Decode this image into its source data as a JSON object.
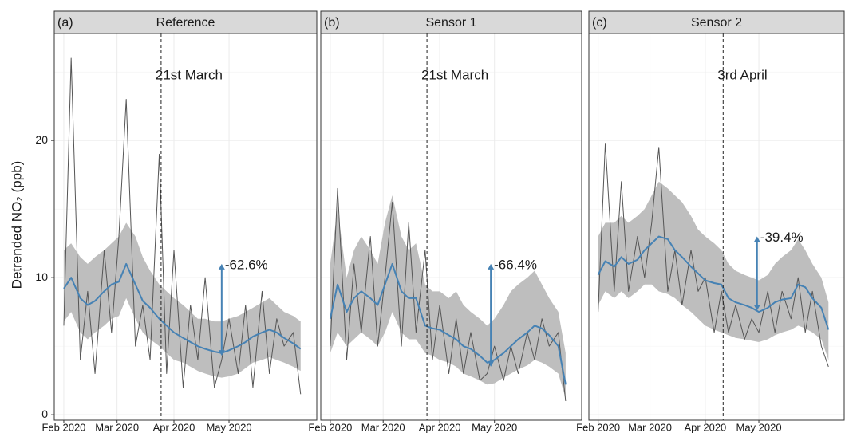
{
  "y_label": "Detrended NO₂ (ppb)",
  "chart_data": [
    {
      "type": "line",
      "tag": "(a)",
      "title": "Reference",
      "x": [
        0,
        4,
        9,
        13,
        17,
        22,
        26,
        30,
        34,
        39,
        43,
        47,
        52,
        56,
        60,
        65,
        69,
        73,
        77,
        82,
        86,
        90,
        95,
        99,
        103,
        108,
        112,
        116,
        120,
        125,
        129
      ],
      "observed": [
        6.5,
        26,
        4,
        9,
        3,
        12,
        6,
        13,
        23,
        5,
        8,
        4,
        19,
        3,
        12,
        2,
        8,
        4,
        10,
        2,
        4,
        7,
        3,
        8,
        2,
        9,
        3,
        7,
        5,
        6,
        1.5
      ],
      "smooth": [
        9.2,
        10,
        8.5,
        8,
        8.3,
        9,
        9.5,
        9.7,
        11,
        9.5,
        8.3,
        7.8,
        7,
        6.5,
        6,
        5.6,
        5.3,
        5,
        4.8,
        4.6,
        4.5,
        4.7,
        5,
        5.3,
        5.7,
        6,
        6.2,
        6,
        5.6,
        5.2,
        4.8
      ],
      "upper": [
        12,
        12.5,
        11.5,
        11,
        11.5,
        12,
        12.5,
        13,
        14,
        13,
        11.5,
        10.5,
        9.5,
        9,
        8.5,
        8,
        7.5,
        7,
        7,
        6.8,
        6.8,
        7,
        7.2,
        7.5,
        7.8,
        8.2,
        8.5,
        8,
        7.5,
        7.2,
        6.8
      ],
      "lower": [
        6.8,
        7.5,
        6,
        5.5,
        6,
        6.5,
        7,
        7.2,
        8.5,
        7,
        6,
        5.5,
        5,
        4.5,
        4,
        3.8,
        3.5,
        3.2,
        3,
        2.8,
        2.7,
        2.8,
        3,
        3.4,
        3.8,
        4,
        4.2,
        4,
        3.8,
        3.5,
        3.2
      ],
      "event": {
        "label": "21st March",
        "x": 53
      },
      "change": {
        "label": "-62.6%",
        "x": 86,
        "from": 4.3,
        "to": 11
      },
      "xlim": [
        -5.2,
        137.8
      ],
      "ylim": [
        -0.4,
        27.8
      ],
      "xticks": [
        {
          "value": 0,
          "label": "Feb 2020"
        },
        {
          "value": 29,
          "label": "Mar 2020"
        },
        {
          "value": 60,
          "label": "Apr 2020"
        },
        {
          "value": 90,
          "label": "May 2020"
        }
      ],
      "yticks": [
        0,
        10,
        20
      ],
      "yminor": [
        5,
        15,
        25
      ]
    },
    {
      "type": "line",
      "tag": "(b)",
      "title": "Sensor 1",
      "x": [
        0,
        4,
        9,
        13,
        17,
        22,
        26,
        30,
        34,
        39,
        43,
        47,
        52,
        56,
        60,
        65,
        69,
        73,
        77,
        82,
        86,
        90,
        95,
        99,
        103,
        108,
        112,
        116,
        120,
        125,
        129
      ],
      "observed": [
        5,
        16.5,
        4,
        11,
        6,
        13,
        5,
        10,
        15.5,
        5,
        14,
        6,
        12,
        4,
        8,
        3,
        7,
        3,
        6,
        2.5,
        3,
        5,
        2.5,
        5,
        3,
        6,
        4,
        7,
        5,
        6,
        1
      ],
      "smooth": [
        7,
        9.5,
        7.5,
        8.5,
        9,
        8.5,
        8,
        9.5,
        11,
        9,
        8.5,
        8.5,
        6.5,
        6.3,
        6.2,
        5.8,
        5.5,
        5,
        4.8,
        4.3,
        3.8,
        4,
        4.5,
        5,
        5.5,
        6,
        6.5,
        6.3,
        5.8,
        5,
        2.2
      ],
      "upper": [
        11,
        15,
        10,
        12,
        13,
        12,
        11,
        14,
        16,
        13,
        12,
        12.5,
        9.5,
        9,
        9,
        8.5,
        9,
        8,
        7.5,
        7,
        6.5,
        7,
        8,
        9,
        9.5,
        10,
        10.5,
        9.5,
        8.5,
        7.5,
        4.5
      ],
      "lower": [
        4.5,
        6,
        5,
        5.5,
        6,
        5.5,
        5,
        6,
        7.5,
        6,
        5.5,
        5.5,
        4.5,
        4.3,
        4,
        3.8,
        3.5,
        3,
        2.8,
        2.5,
        2.2,
        2.3,
        2.7,
        3,
        3.3,
        3.6,
        4,
        3.8,
        3.5,
        3,
        1.2
      ],
      "event": {
        "label": "21st March",
        "x": 53
      },
      "change": {
        "label": "-66.4%",
        "x": 88,
        "from": 3.5,
        "to": 11
      },
      "xlim": [
        -5.2,
        137.8
      ],
      "ylim": [
        -0.4,
        27.8
      ],
      "xticks": [
        {
          "value": 0,
          "label": "Feb 2020"
        },
        {
          "value": 29,
          "label": "Mar 2020"
        },
        {
          "value": 60,
          "label": "Apr 2020"
        },
        {
          "value": 90,
          "label": "May 2020"
        }
      ],
      "yticks": [
        0,
        10,
        20
      ],
      "yminor": [
        5,
        15,
        25
      ]
    },
    {
      "type": "line",
      "tag": "(c)",
      "title": "Sensor 2",
      "x": [
        0,
        4,
        9,
        13,
        17,
        22,
        26,
        30,
        34,
        39,
        43,
        47,
        52,
        56,
        60,
        65,
        69,
        73,
        77,
        82,
        86,
        90,
        95,
        99,
        103,
        108,
        112,
        116,
        120,
        125,
        129
      ],
      "observed": [
        7.5,
        19.8,
        9,
        17,
        9,
        13,
        10,
        14,
        19.5,
        9,
        12,
        8,
        12,
        9,
        10,
        6,
        9,
        6,
        8,
        5.5,
        7,
        6,
        9,
        6,
        9,
        7,
        10,
        6,
        9,
        5,
        3.5
      ],
      "smooth": [
        10.2,
        11.2,
        10.8,
        11.5,
        11,
        11.3,
        12,
        12.5,
        13,
        12.8,
        12,
        11.5,
        10.8,
        10.3,
        9.8,
        9.6,
        9.5,
        8.5,
        8.2,
        8,
        7.8,
        7.5,
        7.8,
        8.2,
        8.4,
        8.5,
        9.5,
        9.3,
        8.5,
        7.8,
        6.2
      ],
      "upper": [
        13,
        14,
        14,
        14.5,
        14,
        14.5,
        15,
        16,
        17,
        16.5,
        16,
        15.5,
        14.5,
        13.5,
        13,
        12.5,
        12,
        11,
        10.5,
        10.2,
        10,
        9.8,
        10.2,
        11,
        11.5,
        12,
        12.8,
        12,
        11,
        10,
        8.2
      ],
      "lower": [
        8,
        9,
        8.5,
        9,
        8.5,
        9,
        9.5,
        9.5,
        9,
        8.8,
        8.5,
        8,
        7.5,
        7,
        6.5,
        6.2,
        6,
        5.8,
        5.6,
        5.5,
        5.4,
        5.3,
        5.5,
        5.8,
        6,
        6.2,
        6.5,
        6.3,
        6,
        5.5,
        4
      ],
      "event": {
        "label": "3rd April",
        "x": 70
      },
      "change": {
        "label": "-39.4%",
        "x": 89,
        "from": 7.6,
        "to": 13
      },
      "xlim": [
        -5.2,
        137.8
      ],
      "ylim": [
        -0.4,
        27.8
      ],
      "xticks": [
        {
          "value": 0,
          "label": "Feb 2020"
        },
        {
          "value": 29,
          "label": "Mar 2020"
        },
        {
          "value": 60,
          "label": "Apr 2020"
        },
        {
          "value": 90,
          "label": "May 2020"
        }
      ],
      "yticks": [
        0,
        10,
        20
      ],
      "yminor": [
        5,
        15,
        25
      ]
    }
  ],
  "colors": {
    "observed": "#555555",
    "smooth": "#4682b4",
    "ribbon": "#bebebe",
    "annotation": "#4682b4"
  }
}
